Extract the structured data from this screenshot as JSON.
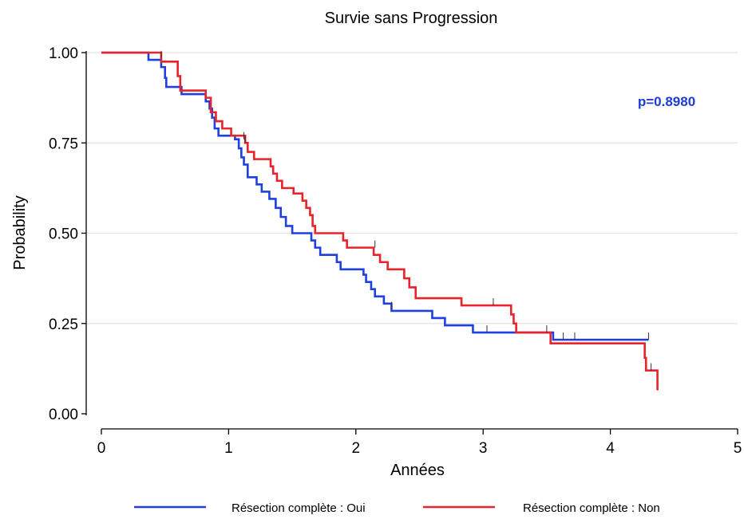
{
  "chart_data": {
    "type": "line",
    "step": true,
    "title": "Survie sans Progression",
    "xlabel": "Années",
    "ylabel": "Probability",
    "xlim": [
      0,
      5
    ],
    "ylim": [
      0,
      1
    ],
    "xticks": [
      0,
      1,
      2,
      3,
      4,
      5
    ],
    "xtick_labels": [
      "0",
      "1",
      "2",
      "3",
      "4",
      "5"
    ],
    "yticks": [
      0,
      0.25,
      0.5,
      0.75,
      1
    ],
    "ytick_labels": [
      "0.00",
      "0.25",
      "0.50",
      "0.75",
      "1.00"
    ],
    "grid": "horizontal",
    "legend_position": "bottom",
    "annotation": {
      "text": "p=0.8980",
      "color": "#1e3cd6",
      "x": 4.35,
      "y": 0.885
    },
    "series": [
      {
        "name": "Résection complète : Oui",
        "color": "#1f3fe0",
        "points": [
          [
            0,
            1.0
          ],
          [
            0.37,
            0.98
          ],
          [
            0.47,
            0.96
          ],
          [
            0.5,
            0.93
          ],
          [
            0.51,
            0.905
          ],
          [
            0.63,
            0.885
          ],
          [
            0.78,
            0.885
          ],
          [
            0.82,
            0.865
          ],
          [
            0.85,
            0.845
          ],
          [
            0.87,
            0.82
          ],
          [
            0.89,
            0.79
          ],
          [
            0.92,
            0.77
          ],
          [
            1.05,
            0.76
          ],
          [
            1.08,
            0.735
          ],
          [
            1.1,
            0.71
          ],
          [
            1.12,
            0.69
          ],
          [
            1.15,
            0.655
          ],
          [
            1.22,
            0.635
          ],
          [
            1.26,
            0.615
          ],
          [
            1.32,
            0.595
          ],
          [
            1.37,
            0.57
          ],
          [
            1.41,
            0.545
          ],
          [
            1.45,
            0.52
          ],
          [
            1.5,
            0.5
          ],
          [
            1.65,
            0.48
          ],
          [
            1.68,
            0.46
          ],
          [
            1.72,
            0.44
          ],
          [
            1.85,
            0.42
          ],
          [
            1.88,
            0.4
          ],
          [
            2.06,
            0.385
          ],
          [
            2.08,
            0.365
          ],
          [
            2.12,
            0.345
          ],
          [
            2.15,
            0.325
          ],
          [
            2.22,
            0.305
          ],
          [
            2.28,
            0.285
          ],
          [
            2.6,
            0.265
          ],
          [
            2.7,
            0.245
          ],
          [
            2.92,
            0.225
          ],
          [
            3.55,
            0.205
          ],
          [
            4.3,
            0.205
          ]
        ]
      },
      {
        "name": "Résection complète : Non",
        "color": "#e8232a",
        "points": [
          [
            0,
            1.0
          ],
          [
            0.47,
            0.975
          ],
          [
            0.6,
            0.935
          ],
          [
            0.62,
            0.895
          ],
          [
            0.82,
            0.875
          ],
          [
            0.86,
            0.835
          ],
          [
            0.9,
            0.81
          ],
          [
            0.95,
            0.79
          ],
          [
            1.02,
            0.77
          ],
          [
            1.13,
            0.75
          ],
          [
            1.15,
            0.725
          ],
          [
            1.2,
            0.705
          ],
          [
            1.33,
            0.685
          ],
          [
            1.35,
            0.665
          ],
          [
            1.38,
            0.645
          ],
          [
            1.42,
            0.625
          ],
          [
            1.51,
            0.61
          ],
          [
            1.58,
            0.59
          ],
          [
            1.61,
            0.57
          ],
          [
            1.64,
            0.55
          ],
          [
            1.66,
            0.52
          ],
          [
            1.68,
            0.5
          ],
          [
            1.9,
            0.48
          ],
          [
            1.93,
            0.46
          ],
          [
            2.14,
            0.44
          ],
          [
            2.19,
            0.42
          ],
          [
            2.25,
            0.4
          ],
          [
            2.38,
            0.375
          ],
          [
            2.42,
            0.35
          ],
          [
            2.47,
            0.32
          ],
          [
            2.83,
            0.3
          ],
          [
            3.22,
            0.275
          ],
          [
            3.24,
            0.25
          ],
          [
            3.26,
            0.225
          ],
          [
            3.53,
            0.195
          ],
          [
            4.27,
            0.155
          ],
          [
            4.28,
            0.12
          ],
          [
            4.37,
            0.065
          ]
        ]
      }
    ],
    "censor_marks": {
      "Résection complète : Oui": [
        [
          0.47,
          0.985
        ],
        [
          1.12,
          0.76
        ],
        [
          2.28,
          0.29
        ],
        [
          3.03,
          0.225
        ],
        [
          3.63,
          0.205
        ],
        [
          3.72,
          0.205
        ],
        [
          4.3,
          0.205
        ]
      ],
      "Résection complète : Non": [
        [
          1.13,
          0.75
        ],
        [
          2.15,
          0.46
        ],
        [
          3.08,
          0.3
        ],
        [
          3.5,
          0.225
        ],
        [
          4.32,
          0.12
        ]
      ]
    }
  }
}
